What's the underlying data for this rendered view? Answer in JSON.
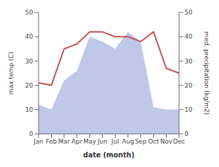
{
  "chart_data": {
    "type": "line",
    "categories": [
      "Jan",
      "Feb",
      "Mar",
      "Apr",
      "May",
      "Jun",
      "Jul",
      "Aug",
      "Sep",
      "Oct",
      "Nov",
      "Dec"
    ],
    "xlabel": "date (month)",
    "ylabel": "max temp (C)",
    "y2label": "med. precipitation (kg/m2)",
    "ylim": [
      0,
      50
    ],
    "yticks": [
      0,
      10,
      20,
      30,
      40,
      50
    ],
    "y2lim": [
      0,
      50
    ],
    "y2ticks": [
      0,
      10,
      20,
      30,
      40,
      50
    ],
    "grid": false,
    "series": [
      {
        "type": "area",
        "axis": "y2",
        "color": "#bfc8e8",
        "values": [
          12,
          10,
          22,
          26,
          40,
          38,
          35,
          42,
          38,
          11,
          10,
          10
        ]
      },
      {
        "type": "line",
        "color": "#c0504d",
        "values": [
          21,
          20,
          35,
          37,
          42,
          42,
          40,
          40,
          38,
          42,
          27,
          25
        ]
      }
    ]
  }
}
